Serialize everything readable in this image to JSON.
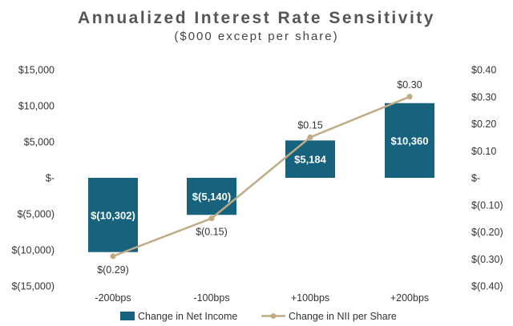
{
  "chart_data": {
    "type": "bar",
    "title": "Annualized Interest Rate Sensitivity",
    "subtitle": "($000 except per share)",
    "categories": [
      "-200bps",
      "-100bps",
      "+100bps",
      "+200bps"
    ],
    "series": [
      {
        "name": "Change in Net Income",
        "kind": "bar",
        "axis": "left",
        "color": "#17627d",
        "values": [
          -10302,
          -5140,
          5184,
          10360
        ],
        "labels": [
          "$(10,302)",
          "$(5,140)",
          "$5,184",
          "$10,360"
        ]
      },
      {
        "name": "Change in NII per Share",
        "kind": "line",
        "axis": "right",
        "color": "#bfab84",
        "values": [
          -0.29,
          -0.15,
          0.15,
          0.3
        ],
        "labels": [
          "$(0.29)",
          "$(0.15)",
          "$0.15",
          "$0.30"
        ]
      }
    ],
    "left_axis": {
      "min": -15000,
      "max": 15000,
      "step": 5000,
      "tick_labels": [
        "$(15,000)",
        "$(10,000)",
        "$(5,000)",
        "$-",
        "$5,000",
        "$10,000",
        "$15,000"
      ]
    },
    "right_axis": {
      "min": -0.4,
      "max": 0.4,
      "step": 0.1,
      "tick_labels": [
        "$(0.40)",
        "$(0.30)",
        "$(0.20)",
        "$(0.10)",
        "$-",
        "$0.10",
        "$0.20",
        "$0.30",
        "$0.40"
      ]
    },
    "grid": false,
    "legend": {
      "placement": "bottom"
    }
  }
}
